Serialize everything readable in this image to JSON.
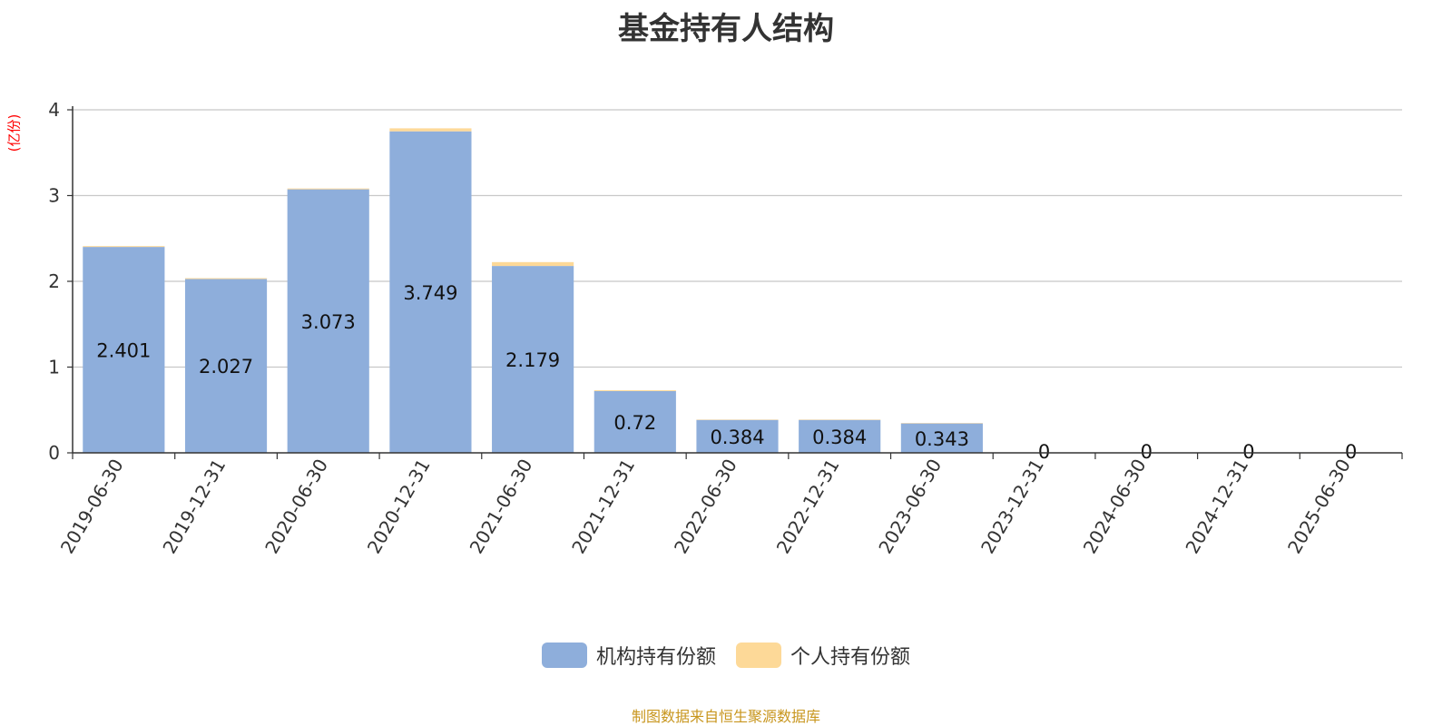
{
  "chart_data": {
    "type": "bar",
    "stacked": true,
    "title": "基金持有人结构",
    "ylabel": "(亿份)",
    "xlabel": "",
    "ylim": [
      0,
      4
    ],
    "yticks": [
      "0",
      "1",
      "2",
      "3",
      "4"
    ],
    "grid": true,
    "legend_position": "bottom",
    "categories": [
      "2019-06-30",
      "2019-12-31",
      "2020-06-30",
      "2020-12-31",
      "2021-06-30",
      "2021-12-31",
      "2022-06-30",
      "2022-12-31",
      "2023-06-30",
      "2023-12-31",
      "2024-06-30",
      "2024-12-31",
      "2025-06-30"
    ],
    "series": [
      {
        "name": "机构持有份额",
        "color": "#8eaedb",
        "values": [
          2.401,
          2.027,
          3.073,
          3.749,
          2.179,
          0.72,
          0.384,
          0.384,
          0.343,
          0,
          0,
          0,
          0
        ],
        "labels": [
          "2.401",
          "2.027",
          "3.073",
          "3.749",
          "2.179",
          "0.72",
          "0.384",
          "0.384",
          "0.343",
          "0",
          "0",
          "0",
          "0"
        ]
      },
      {
        "name": "个人持有份额",
        "color": "#fdd998",
        "values": [
          0.01,
          0.01,
          0.01,
          0.035,
          0.045,
          0.01,
          0.005,
          0.005,
          0.005,
          0.004,
          0.004,
          0.004,
          0.006
        ]
      }
    ]
  },
  "footer": {
    "source": "制图数据来自恒生聚源数据库",
    "source_color": "#c8961e"
  }
}
